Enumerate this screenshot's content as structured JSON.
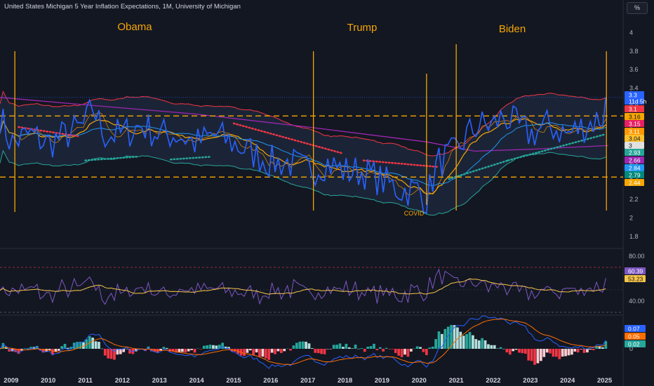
{
  "header": {
    "title": "United States Michigan 5 Year Inflation Expectations, 1M, University of Michigan",
    "unit_button": "%"
  },
  "annotations": [
    {
      "label": "Obama",
      "x": 2009.1
    },
    {
      "label": "Trump",
      "x": 2017.15
    },
    {
      "label": "Biden",
      "x": 2021.0
    },
    {
      "label": "COVID",
      "x": 2020.2
    }
  ],
  "colors": {
    "background": "#131722",
    "main_line": "#2962ff",
    "band_upper": "#f23645",
    "band_lower": "#26a69a",
    "long_ma": "#9c27b0",
    "short_ma": "#f7a600",
    "mid_ma": "#2196f3",
    "dotted_short": "#f23645",
    "dotted_long": "#26a69a",
    "rsi": "#7e57c2",
    "rsi_ma": "#f7c548",
    "macd": "#2962ff",
    "signal": "#ff6d00",
    "hist_pos": "#26a69a",
    "hist_neg": "#f23645",
    "vline": "#f7a600",
    "hline": "#f7a600"
  },
  "chart_data": [
    {
      "type": "line",
      "name": "United States Michigan 5 Year Inflation Expectations",
      "x_ticks": [
        "2009",
        "2010",
        "2011",
        "2012",
        "2013",
        "2014",
        "2015",
        "2016",
        "2017",
        "2018",
        "2019",
        "2020",
        "2021",
        "2022",
        "2023",
        "2024",
        "2025"
      ],
      "y_ticks": [
        "1.8",
        "2",
        "2.2",
        "2.4",
        "2.6",
        "2.8",
        "3",
        "3.2",
        "3.4",
        "3.6",
        "3.8",
        "4"
      ],
      "ylim": [
        1.7,
        4.2
      ],
      "xlim": [
        2008.7,
        2025.5
      ],
      "horizontal_levels": [
        3.1,
        2.44
      ],
      "series_key_points": {
        "x": [
          2008.7,
          2009.0,
          2009.5,
          2010.0,
          2010.5,
          2011.0,
          2011.2,
          2011.5,
          2012.0,
          2012.5,
          2013.0,
          2013.5,
          2014.0,
          2014.5,
          2015.0,
          2015.5,
          2016.0,
          2016.5,
          2017.0,
          2017.5,
          2018.0,
          2018.5,
          2019.0,
          2019.5,
          2020.0,
          2020.2,
          2020.5,
          2021.0,
          2021.3,
          2021.6,
          2022.0,
          2022.3,
          2022.6,
          2023.0,
          2023.5,
          2024.0,
          2024.5,
          2025.0,
          2025.1
        ],
        "y": [
          3.1,
          2.8,
          2.9,
          2.8,
          2.9,
          3.0,
          3.2,
          2.9,
          2.9,
          3.0,
          2.9,
          2.9,
          2.8,
          2.9,
          2.8,
          2.7,
          2.6,
          2.6,
          2.5,
          2.6,
          2.5,
          2.5,
          2.4,
          2.3,
          2.3,
          2.2,
          2.6,
          2.7,
          2.9,
          3.0,
          3.0,
          3.1,
          3.0,
          2.9,
          3.0,
          2.9,
          3.0,
          3.1,
          3.3
        ]
      },
      "price_labels": [
        {
          "value": "3.3",
          "color": "#2962ff"
        },
        {
          "value": "11d 5h",
          "color": "#2962ff"
        },
        {
          "value": "3.1",
          "color": "#f23645"
        },
        {
          "value": "3.16",
          "color": "#f7a600"
        },
        {
          "value": "3.15",
          "color": "#e91e63"
        },
        {
          "value": "3.11",
          "color": "#ff9800"
        },
        {
          "value": "3.04",
          "color": "#fbc02d"
        },
        {
          "value": "3",
          "color": "#e0e0e0"
        },
        {
          "value": "2.93",
          "color": "#26a69a"
        },
        {
          "value": "2.66",
          "color": "#9c27b0"
        },
        {
          "value": "2.84",
          "color": "#2196f3"
        },
        {
          "value": "2.79",
          "color": "#00897b"
        },
        {
          "value": "2.44",
          "color": "#f7a600"
        }
      ]
    },
    {
      "type": "line",
      "name": "RSI",
      "y_ticks": [
        "80.00",
        "40.00"
      ],
      "ylim": [
        30,
        85
      ],
      "levels": [
        70,
        30
      ],
      "latest_labels": [
        {
          "value": "60.39",
          "color": "#7e57c2"
        },
        {
          "value": "53.23",
          "color": "#f7c548"
        }
      ]
    },
    {
      "type": "bar",
      "name": "MACD",
      "y_ticks": [
        "0"
      ],
      "latest_labels": [
        {
          "value": "0.07",
          "color": "#2962ff"
        },
        {
          "value": "0.05",
          "color": "#ff6d00"
        },
        {
          "value": "0.02",
          "color": "#26a69a"
        }
      ]
    }
  ]
}
